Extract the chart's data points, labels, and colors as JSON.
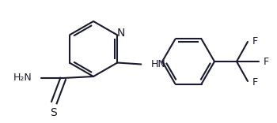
{
  "bg_color": "#ffffff",
  "bond_color": "#1a1a2e",
  "bond_lw": 1.5,
  "font_color": "#1a1a2e",
  "font_size": 9,
  "figsize": [
    3.5,
    1.56
  ],
  "dpi": 100,
  "xlim": [
    0,
    350
  ],
  "ylim": [
    0,
    156
  ]
}
